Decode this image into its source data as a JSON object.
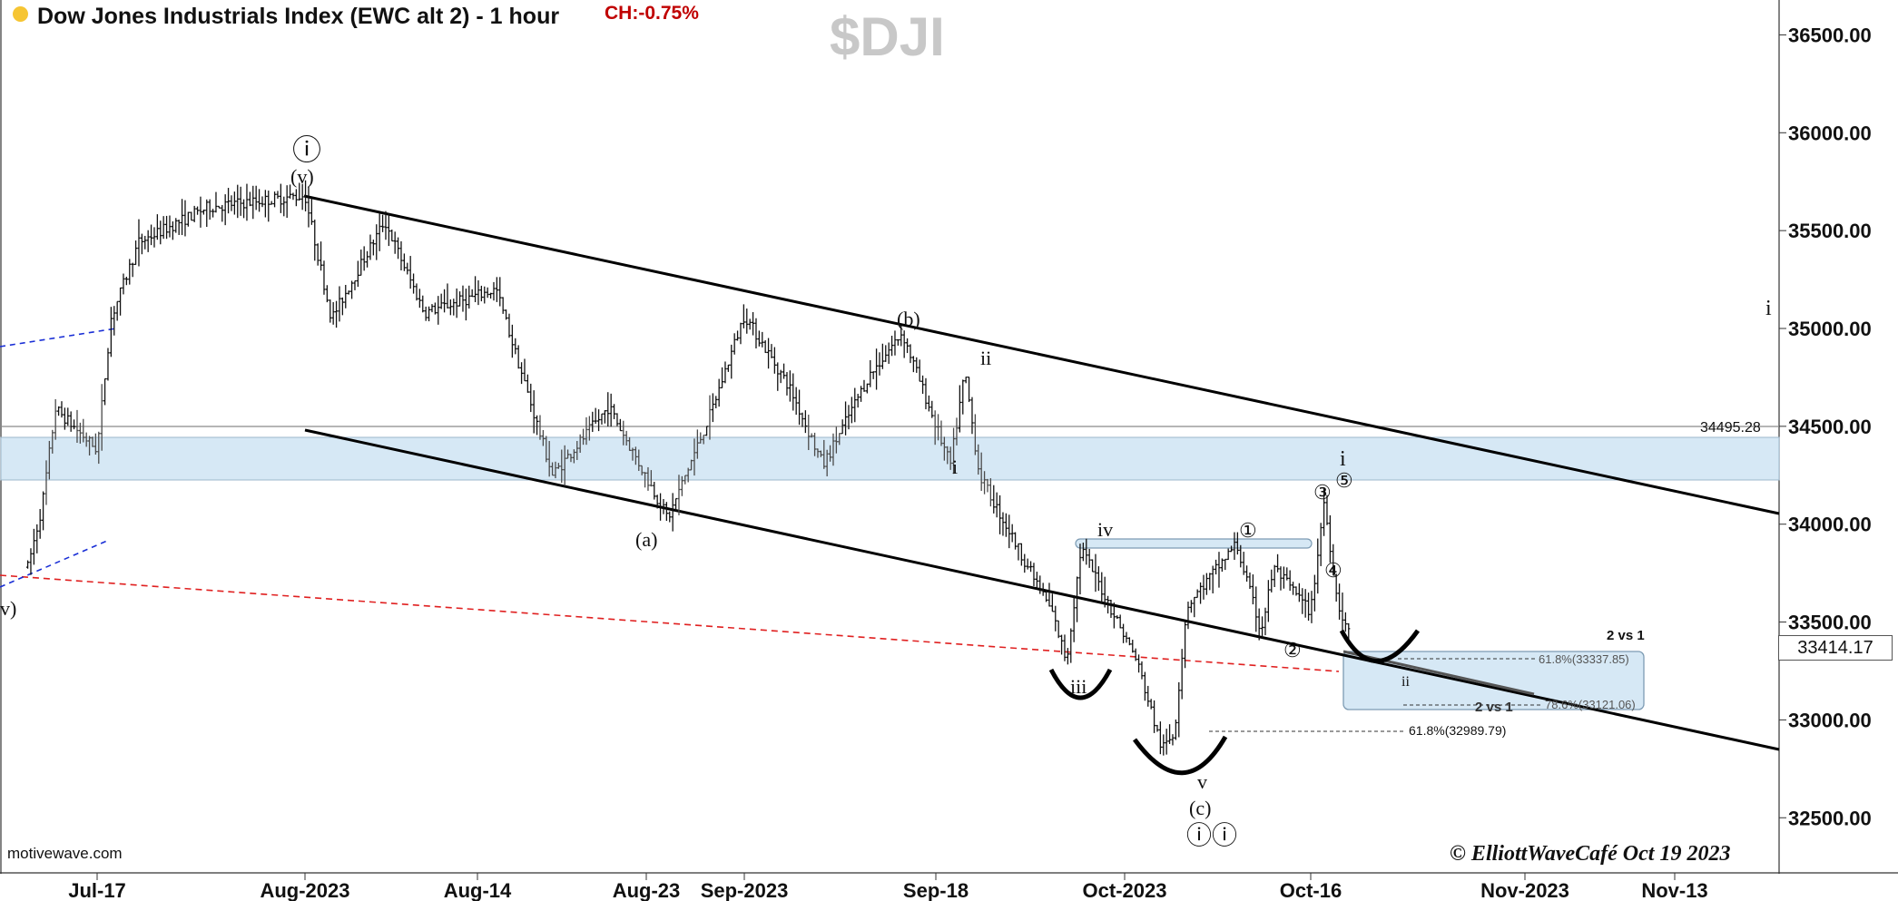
{
  "header": {
    "title": "Dow Jones Industrials Index (EWC alt 2) - 1 hour",
    "change": "CH:-0.75%",
    "symbol": "$DJI"
  },
  "footer": {
    "source": "motivewave.com",
    "copyright": "© ElliottWaveCafé Oct 19 2023"
  },
  "colors": {
    "price_bars": "#111111",
    "channel_lines": "#000000",
    "support_zone": "#d6e8f5",
    "support_dashed": "#e02020",
    "blue_dashed": "#1a2fd6",
    "header_dot": "#f6c533",
    "change_text": "#c00000"
  },
  "chart_data": {
    "type": "bar",
    "subtype": "ohlc",
    "title": "Dow Jones Industrials Index (EWC alt 2) - 1 hour",
    "x_ticks": [
      "Jul-17",
      "Aug-2023",
      "Aug-14",
      "Aug-23",
      "Sep-2023",
      "Sep-18",
      "Oct-2023",
      "Oct-16",
      "Nov-2023",
      "Nov-13"
    ],
    "y_ticks": [
      32500,
      33000,
      33500,
      34000,
      34500,
      35000,
      35500,
      36000,
      36500
    ],
    "ylim": [
      32300,
      36750
    ],
    "y_axis_side": "right",
    "grid": false,
    "last_price": 33414.17,
    "horizontal_levels": [
      {
        "label": "34495.28",
        "value": 34495.28
      }
    ],
    "zones": [
      {
        "name": "support-resistance-zone",
        "y_range": [
          34240,
          34460
        ]
      }
    ],
    "fib_levels": [
      {
        "label": "61.8%(33337.85)",
        "value": 33337.85
      },
      {
        "label": "78.6%(33121.06)",
        "value": 33121.06
      },
      {
        "label": "61.8%(32989.79)",
        "value": 32989.79
      }
    ],
    "swing_points": [
      {
        "date": "Jul-12",
        "low": 33780
      },
      {
        "date": "Jul-13",
        "high": 34080
      },
      {
        "date": "Jul-14",
        "high": 34590
      },
      {
        "date": "Jul-17",
        "low": 34380
      },
      {
        "date": "Jul-18",
        "high": 35050
      },
      {
        "date": "Jul-20",
        "high": 35440
      },
      {
        "date": "Jul-25",
        "high": 35620
      },
      {
        "date": "Aug-01",
        "high": 35680
      },
      {
        "date": "Aug-03",
        "low": 35050
      },
      {
        "date": "Aug-07",
        "high": 35550
      },
      {
        "date": "Aug-10",
        "low": 35080
      },
      {
        "date": "Aug-15",
        "high": 35200
      },
      {
        "date": "Aug-18",
        "low": 34250
      },
      {
        "date": "Aug-21",
        "high": 34600
      },
      {
        "date": "Aug-25",
        "low": 34030
      },
      {
        "date": "Aug-29",
        "high": 34580
      },
      {
        "date": "Sep-01",
        "high": 35070
      },
      {
        "date": "Sep-05",
        "low": 34700
      },
      {
        "date": "Sep-08",
        "low": 34300
      },
      {
        "date": "Sep-12",
        "high": 34750
      },
      {
        "date": "Sep-15",
        "high": 34980
      },
      {
        "date": "Sep-19",
        "low": 34300
      },
      {
        "date": "Sep-20",
        "high": 34780
      },
      {
        "date": "Sep-21",
        "low": 34250
      },
      {
        "date": "Sep-26",
        "low": 33550
      },
      {
        "date": "Sep-27",
        "low": 33300
      },
      {
        "date": "Sep-28",
        "high": 33880
      },
      {
        "date": "Oct-02",
        "low": 33300
      },
      {
        "date": "Oct-04",
        "low": 32850
      },
      {
        "date": "Oct-05",
        "low": 32930
      },
      {
        "date": "Oct-06",
        "high": 33580
      },
      {
        "date": "Oct-10",
        "high": 33900
      },
      {
        "date": "Oct-12",
        "low": 33450
      },
      {
        "date": "Oct-13",
        "high": 33780
      },
      {
        "date": "Oct-16",
        "low": 33550
      },
      {
        "date": "Oct-17",
        "high": 34120
      },
      {
        "date": "Oct-18",
        "low": 33600
      },
      {
        "date": "Oct-19",
        "low": 33414
      }
    ],
    "trend_lines": [
      {
        "name": "upper-channel",
        "from": {
          "date": "Aug-01",
          "value": 35700
        },
        "to": {
          "date": "Nov-16",
          "value": 34080
        }
      },
      {
        "name": "lower-channel",
        "from": {
          "date": "Aug-01",
          "value": 34490
        },
        "to": {
          "date": "Nov-16",
          "value": 32940
        }
      }
    ],
    "annotations": [
      {
        "text": "ⓘ",
        "kind": "wave-circled"
      },
      {
        "text": "(v)",
        "kind": "wave"
      },
      {
        "text": "(b)",
        "kind": "wave"
      },
      {
        "text": "ii",
        "kind": "wave"
      },
      {
        "text": "i",
        "kind": "wave"
      },
      {
        "text": "(a)",
        "kind": "wave"
      },
      {
        "text": "iv",
        "kind": "wave"
      },
      {
        "text": "iii",
        "kind": "wave"
      },
      {
        "text": "v",
        "kind": "wave"
      },
      {
        "text": "(c)",
        "kind": "wave"
      },
      {
        "text": "ⓘⓘ",
        "kind": "wave-circled"
      },
      {
        "text": "①",
        "kind": "wave"
      },
      {
        "text": "②",
        "kind": "wave"
      },
      {
        "text": "③",
        "kind": "wave"
      },
      {
        "text": "④",
        "kind": "wave"
      },
      {
        "text": "⑤",
        "kind": "wave"
      },
      {
        "text": "i",
        "kind": "wave"
      },
      {
        "text": "ii",
        "kind": "wave"
      },
      {
        "text": "i",
        "kind": "wave"
      },
      {
        "text": "v)",
        "kind": "wave"
      },
      {
        "text": "2 vs 1",
        "kind": "note"
      },
      {
        "text": "2 vs 1",
        "kind": "note"
      }
    ]
  }
}
